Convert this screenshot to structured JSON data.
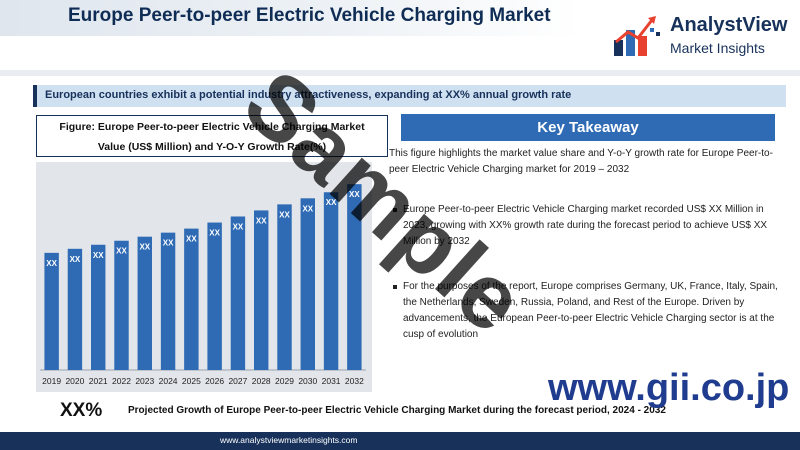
{
  "header": {
    "title": "Europe Peer-to-peer Electric Vehicle Charging Market",
    "logo_name": "AnalystView",
    "logo_sub": "Market Insights"
  },
  "banner": "European countries exhibit a potential industry attractiveness, expanding at XX% annual growth rate",
  "figure": {
    "title_line1": "Figure: Europe Peer-to-peer Electric Vehicle Charging Market",
    "title_line2": "Value (US$ Million) and Y-O-Y Growth Rate(%)"
  },
  "chart_data": {
    "type": "bar",
    "title": "Figure: Europe Peer-to-peer Electric Vehicle Charging Market Value (US$ Million) and Y-O-Y Growth Rate(%)",
    "categories": [
      "2019",
      "2020",
      "2021",
      "2022",
      "2023",
      "2024",
      "2025",
      "2026",
      "2027",
      "2028",
      "2029",
      "2030",
      "2031",
      "2032"
    ],
    "values": [
      58,
      60,
      62,
      64,
      66,
      68,
      70,
      73,
      76,
      79,
      82,
      85,
      88,
      92
    ],
    "data_labels": [
      "XX",
      "XX",
      "XX",
      "XX",
      "XX",
      "XX",
      "XX",
      "XX",
      "XX",
      "XX",
      "XX",
      "XX",
      "XX",
      "XX"
    ],
    "ylim": [
      0,
      100
    ],
    "grid": false,
    "bar_color": "#2f6bb5"
  },
  "key_takeaway": {
    "heading": "Key Takeaway",
    "intro": "This figure highlights the market value share and Y-o-Y growth rate for Europe Peer-to-peer Electric Vehicle Charging market for 2019 – 2032",
    "bullet1": "Europe Peer-to-peer Electric Vehicle Charging market recorded US$ XX Million in 2023, growing with XX% growth rate during the forecast period to achieve US$ XX Million by 2032",
    "bullet2": "For the purposes of the report, Europe comprises Germany, UK, France, Italy, Spain, the Netherlands, Sweden, Russia, Poland, and Rest of the Europe. Driven by advancements, the European Peer-to-peer Electric Vehicle Charging sector is at the cusp of evolution"
  },
  "projection": {
    "value": "XX%",
    "text": "Projected Growth of Europe Peer-to-peer Electric Vehicle Charging Market during the forecast period, 2024 - 2032"
  },
  "footer": "www.analystviewmarketinsights.com",
  "watermark": "Sample",
  "gii": "www.gii.co.jp",
  "colors": {
    "navy": "#17315b",
    "accent_blue": "#2f6bb5",
    "banner_bg": "#cfe0f1",
    "logo_red": "#e8412f"
  }
}
